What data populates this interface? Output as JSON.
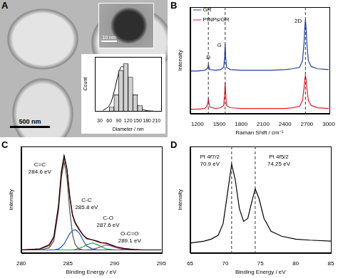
{
  "chart_data": [
    {
      "panel": "A",
      "type": "histogram",
      "image_labels": [
        "500 nm",
        "10 nm"
      ],
      "bins": [
        30,
        45,
        60,
        75,
        90,
        105,
        120,
        135,
        150,
        165,
        180,
        195,
        210
      ],
      "counts": [
        0,
        0,
        3,
        12,
        30,
        35,
        25,
        12,
        4,
        0,
        0,
        0
      ],
      "color": "#d0d0d0",
      "fit": {
        "x": [
          40,
          60,
          75,
          90,
          100,
          110,
          125,
          140,
          160,
          180,
          200
        ],
        "values": [
          0.5,
          4,
          14,
          28,
          33,
          30,
          19,
          8,
          2,
          0.3,
          0
        ],
        "color": "#000000"
      },
      "xlabel": "Diameter / nm",
      "ylabel": "Count",
      "xlim": [
        15,
        225
      ],
      "xticks": [
        30,
        60,
        90,
        120,
        150,
        180,
        210
      ],
      "ylim": [
        0,
        40
      ],
      "tick_labels": "x",
      "grid": false
    },
    {
      "panel": "B",
      "type": "line",
      "x": [
        1100,
        1200,
        1300,
        1330,
        1345,
        1350,
        1355,
        1370,
        1450,
        1520,
        1560,
        1572,
        1580,
        1588,
        1600,
        1650,
        1800,
        2000,
        2200,
        2400,
        2500,
        2600,
        2640,
        2660,
        2670,
        2680,
        2690,
        2700,
        2720,
        2760,
        2850,
        3000
      ],
      "series": [
        {
          "name": "GR",
          "color": "#1f3f9f",
          "values": [
            0.58,
            0.58,
            0.59,
            0.61,
            0.64,
            0.66,
            0.64,
            0.6,
            0.59,
            0.6,
            0.63,
            0.75,
            0.95,
            0.76,
            0.63,
            0.6,
            0.59,
            0.59,
            0.59,
            0.6,
            0.61,
            0.63,
            0.72,
            0.95,
            1.15,
            1.28,
            1.15,
            0.95,
            0.72,
            0.64,
            0.61,
            0.6
          ]
        },
        {
          "name": "PtNPs/GR",
          "color": "#e0202a",
          "values": [
            0.06,
            0.06,
            0.07,
            0.1,
            0.16,
            0.19,
            0.16,
            0.09,
            0.07,
            0.08,
            0.11,
            0.25,
            0.42,
            0.26,
            0.11,
            0.08,
            0.07,
            0.07,
            0.07,
            0.07,
            0.08,
            0.1,
            0.18,
            0.34,
            0.46,
            0.52,
            0.46,
            0.34,
            0.18,
            0.11,
            0.08,
            0.07
          ]
        }
      ],
      "xlabel": "Raman Shift / cm⁻¹",
      "ylabel": "Intensity",
      "xlim": [
        1100,
        3000
      ],
      "xticks": [
        1200,
        1500,
        1800,
        2100,
        2400,
        2700,
        3000
      ],
      "ylim": [
        0,
        1.45
      ],
      "tick_labels": "x",
      "grid": false,
      "legend": "top-left",
      "annotations": [
        {
          "text": [
            "D"
          ],
          "x": 1350,
          "y": 0.8
        },
        {
          "text": [
            "G"
          ],
          "x": 1500,
          "y": 0.97
        },
        {
          "text": [
            "2D"
          ],
          "x": 2580,
          "y": 1.3
        }
      ],
      "dashed_lines": [
        1350,
        1580,
        2680
      ]
    },
    {
      "panel": "C",
      "type": "line",
      "x": [
        280,
        282,
        283,
        283.5,
        284,
        284.3,
        284.6,
        284.9,
        285.2,
        285.5,
        285.8,
        286.2,
        286.6,
        287,
        287.6,
        288.2,
        288.6,
        289.1,
        289.6,
        290.2,
        291,
        292,
        293,
        295
      ],
      "series": [
        {
          "color": "#000000",
          "values": [
            0.03,
            0.04,
            0.08,
            0.16,
            0.47,
            0.8,
            0.96,
            0.83,
            0.56,
            0.37,
            0.29,
            0.23,
            0.18,
            0.145,
            0.13,
            0.115,
            0.1,
            0.095,
            0.08,
            0.06,
            0.045,
            0.035,
            0.03,
            0.03
          ]
        },
        {
          "color": "#e0202a",
          "values": [
            0.03,
            0.04,
            0.07,
            0.15,
            0.45,
            0.78,
            0.95,
            0.82,
            0.55,
            0.38,
            0.3,
            0.24,
            0.18,
            0.14,
            0.13,
            0.11,
            0.1,
            0.1,
            0.08,
            0.06,
            0.04,
            0.035,
            0.03,
            0.03
          ]
        },
        {
          "color": "#555555",
          "values": [
            0.03,
            0.03,
            0.05,
            0.12,
            0.42,
            0.74,
            0.9,
            0.74,
            0.42,
            0.18,
            0.08,
            0.04,
            0.03,
            0.03,
            0.03,
            0.03,
            0.03,
            0.03,
            0.03,
            0.03,
            0.03,
            0.03,
            0.03,
            0.03
          ]
        },
        {
          "color": "#2050d0",
          "values": [
            0.03,
            0.03,
            0.03,
            0.03,
            0.04,
            0.06,
            0.09,
            0.14,
            0.19,
            0.22,
            0.23,
            0.2,
            0.13,
            0.07,
            0.04,
            0.03,
            0.03,
            0.03,
            0.03,
            0.03,
            0.03,
            0.03,
            0.03,
            0.03
          ]
        },
        {
          "color": "#20a040",
          "values": [
            0.03,
            0.03,
            0.03,
            0.03,
            0.03,
            0.03,
            0.03,
            0.03,
            0.03,
            0.03,
            0.035,
            0.045,
            0.06,
            0.08,
            0.1,
            0.08,
            0.06,
            0.04,
            0.035,
            0.03,
            0.03,
            0.03,
            0.03,
            0.03
          ]
        },
        {
          "color": "#a040c0",
          "values": [
            0.03,
            0.03,
            0.03,
            0.03,
            0.03,
            0.03,
            0.03,
            0.03,
            0.03,
            0.03,
            0.03,
            0.03,
            0.03,
            0.03,
            0.035,
            0.05,
            0.065,
            0.08,
            0.07,
            0.05,
            0.035,
            0.03,
            0.03,
            0.03
          ]
        }
      ],
      "xlabel": "Binding Energy / eV",
      "ylabel": "Intensity",
      "xlim": [
        280,
        295
      ],
      "xticks": [
        280,
        285,
        290,
        295
      ],
      "ylim": [
        0,
        1.05
      ],
      "tick_labels": "x",
      "grid": false,
      "annotations": [
        {
          "text": [
            "C=C",
            "284.6 eV"
          ],
          "x": 282,
          "y": 0.9
        },
        {
          "text": [
            "C-C",
            "285.8 eV"
          ],
          "x": 287,
          "y": 0.55
        },
        {
          "text": [
            "C-O",
            "287.6 eV"
          ],
          "x": 289.3,
          "y": 0.37
        },
        {
          "text": [
            "O-C=O",
            "289.1 eV"
          ],
          "x": 291.6,
          "y": 0.22
        }
      ]
    },
    {
      "panel": "D",
      "type": "line",
      "x": [
        65,
        67,
        68,
        69,
        69.7,
        70.3,
        70.9,
        71.4,
        72,
        72.6,
        73.2,
        73.7,
        74.25,
        74.8,
        75.5,
        76.5,
        78,
        80,
        82,
        85
      ],
      "series": [
        {
          "color": "#000000",
          "values": [
            0.1,
            0.12,
            0.14,
            0.18,
            0.3,
            0.6,
            0.9,
            0.75,
            0.45,
            0.32,
            0.35,
            0.5,
            0.65,
            0.55,
            0.35,
            0.22,
            0.17,
            0.14,
            0.13,
            0.12
          ]
        }
      ],
      "xlabel": "Binding Energy / eV",
      "ylabel": "Intensity",
      "xlim": [
        65,
        85
      ],
      "xticks": [
        65,
        70,
        75,
        80,
        85
      ],
      "ylim": [
        0,
        1.08
      ],
      "tick_labels": "x",
      "grid": false,
      "annotations": [
        {
          "text": [
            "Pt 4f7/2",
            "70.9 eV"
          ],
          "x": 67.8,
          "y": 1.0
        },
        {
          "text": [
            "Pt 4f5/2",
            "74.25 eV"
          ],
          "x": 77.6,
          "y": 1.0
        }
      ],
      "dashed_lines": [
        70.9,
        74.25
      ]
    }
  ]
}
